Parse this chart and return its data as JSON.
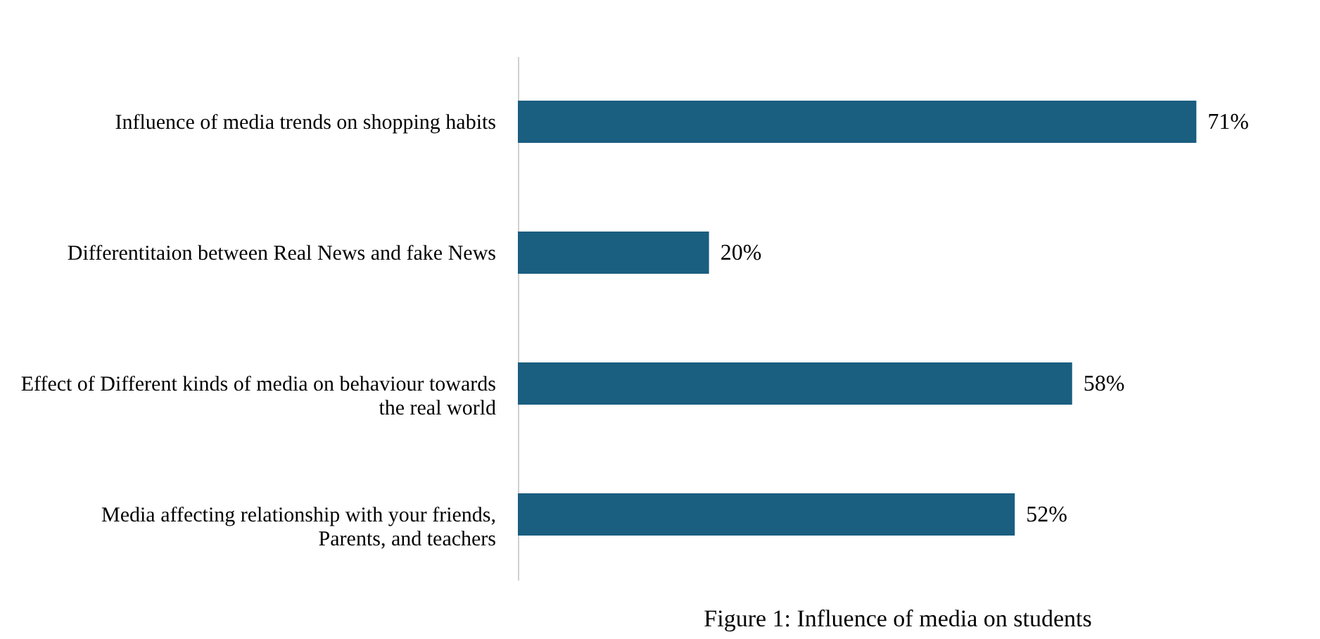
{
  "chart_data": {
    "type": "bar",
    "orientation": "horizontal",
    "title": "Figure 1: Influence of media on students",
    "categories": [
      "Influence of media trends on shopping habits",
      "Differentitaion  between Real News and fake News",
      "Effect of Different kinds of media on  behaviour towards the real world",
      "Media affecting  relationship with your friends, Parents, and teachers"
    ],
    "values": [
      71,
      20,
      58,
      52
    ],
    "value_labels": [
      "71%",
      "20%",
      "58%",
      "52%"
    ],
    "color": "#1a5e80",
    "grid": false
  }
}
